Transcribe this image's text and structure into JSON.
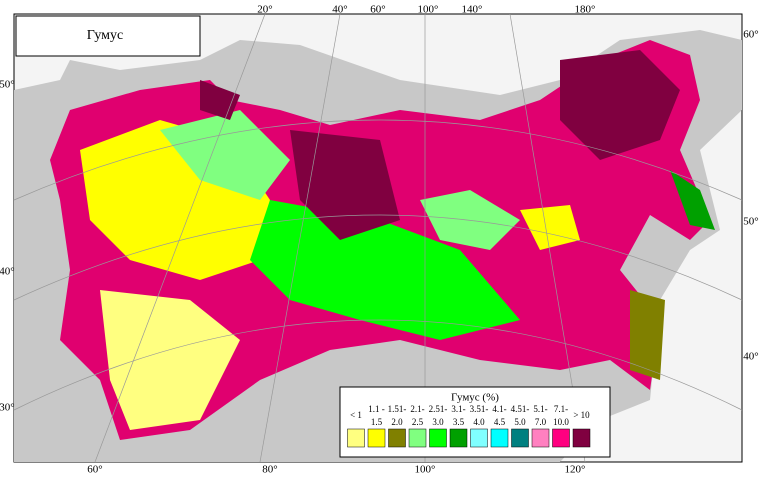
{
  "title": "Гумус",
  "legend": {
    "title": "Гумус (%)",
    "classes": [
      {
        "lines": [
          "< 1"
        ],
        "color": "#ffff80"
      },
      {
        "lines": [
          "1.1 -",
          "1.5"
        ],
        "color": "#ffff00"
      },
      {
        "lines": [
          "1.51-",
          "2.0"
        ],
        "color": "#808000"
      },
      {
        "lines": [
          "2.1-",
          "2.5"
        ],
        "color": "#80ff80"
      },
      {
        "lines": [
          "2.51-",
          "3.0"
        ],
        "color": "#00ff00"
      },
      {
        "lines": [
          "3.1-",
          "3.5"
        ],
        "color": "#00a000"
      },
      {
        "lines": [
          "3.51-",
          "4.0"
        ],
        "color": "#80ffff"
      },
      {
        "lines": [
          "4.1-",
          "4.5"
        ],
        "color": "#00ffff"
      },
      {
        "lines": [
          "4.51-",
          "5.0"
        ],
        "color": "#008080"
      },
      {
        "lines": [
          "5.1-",
          "7.0"
        ],
        "color": "#ff80c0"
      },
      {
        "lines": [
          "7.1-",
          "10.0"
        ],
        "color": "#ff0080"
      },
      {
        "lines": [
          "> 10"
        ],
        "color": "#800040"
      }
    ]
  },
  "graticule": {
    "top": [
      "20°",
      "40°",
      "60°",
      "100°",
      "140°",
      "180°"
    ],
    "bottom": [
      "60°",
      "80°",
      "100°",
      "120°"
    ],
    "left": [
      "50°",
      "40°",
      "30°"
    ],
    "right": [
      "60°",
      "50°",
      "40°"
    ]
  }
}
